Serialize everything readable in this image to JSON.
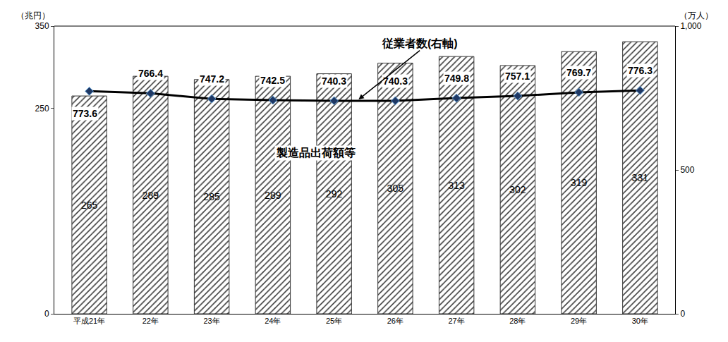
{
  "chart_data": {
    "type": "bar",
    "categories": [
      "平成21年",
      "22年",
      "23年",
      "24年",
      "25年",
      "26年",
      "27年",
      "28年",
      "29年",
      "30年"
    ],
    "series": [
      {
        "name": "製造品出荷額等",
        "type": "bar",
        "color": "#333333",
        "values": [
          265,
          289,
          285,
          289,
          292,
          305,
          313,
          302,
          319,
          331
        ]
      },
      {
        "name": "従業者数(右軸)",
        "type": "line",
        "axis": "y2",
        "color": "#000000",
        "marker": "diamond",
        "values": [
          773.6,
          766.4,
          747.2,
          742.5,
          740.3,
          740.3,
          749.8,
          757.1,
          769.7,
          776.3
        ]
      }
    ],
    "ylabel": "（兆円）",
    "y2label": "（万人）",
    "ylim": [
      0,
      350
    ],
    "yticks": [
      0,
      250,
      350
    ],
    "y2lim": [
      0,
      1000
    ],
    "y2ticks": [
      0,
      500,
      {
        "value": 1000,
        "label": "1,000"
      }
    ],
    "grid": false,
    "data_labels": true
  }
}
